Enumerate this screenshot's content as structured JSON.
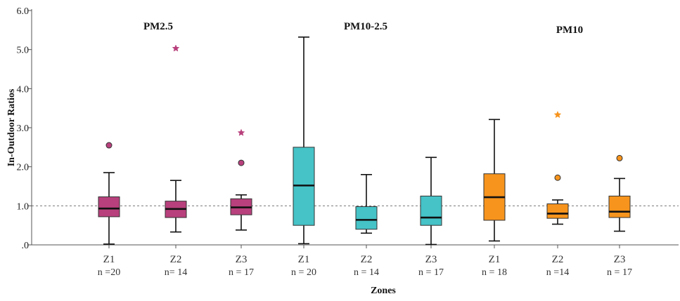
{
  "chart_data": {
    "type": "boxplot",
    "xlabel": "Zones",
    "ylabel": "In-Outdoor Ratios",
    "ylim": [
      0,
      6.0
    ],
    "yticks": [
      0,
      1,
      2,
      3,
      4,
      5,
      6
    ],
    "ytick_labels": [
      ".0",
      "1.0",
      "2.0",
      "3.0",
      "4.0",
      "5.0",
      "6.0"
    ],
    "reference_line": 1.0,
    "groups": [
      {
        "title": "PM2.5",
        "color": "#b8407c",
        "boxes": [
          {
            "category": "Z1",
            "n_label": "n =20",
            "min": 0.02,
            "q1": 0.72,
            "median": 0.93,
            "q3": 1.23,
            "max": 1.85,
            "outliers": [
              2.55
            ],
            "extremes": []
          },
          {
            "category": "Z2",
            "n_label": "n= 14",
            "min": 0.33,
            "q1": 0.7,
            "median": 0.92,
            "q3": 1.12,
            "max": 1.65,
            "outliers": [],
            "extremes": [
              5.03
            ]
          },
          {
            "category": "Z3",
            "n_label": "n = 17",
            "min": 0.38,
            "q1": 0.77,
            "median": 0.96,
            "q3": 1.18,
            "max": 1.28,
            "outliers": [
              2.1
            ],
            "extremes": [
              2.87
            ]
          }
        ]
      },
      {
        "title": "PM10-2.5",
        "color": "#45c3c7",
        "boxes": [
          {
            "category": "Z1",
            "n_label": "n = 20",
            "min": 0.03,
            "q1": 0.5,
            "median": 1.52,
            "q3": 2.5,
            "max": 5.32,
            "outliers": [],
            "extremes": []
          },
          {
            "category": "Z2",
            "n_label": "n = 14",
            "min": 0.3,
            "q1": 0.4,
            "median": 0.64,
            "q3": 0.98,
            "max": 1.8,
            "outliers": [],
            "extremes": []
          },
          {
            "category": "Z3",
            "n_label": "n = 17",
            "min": 0.01,
            "q1": 0.5,
            "median": 0.7,
            "q3": 1.25,
            "max": 2.24,
            "outliers": [],
            "extremes": []
          }
        ]
      },
      {
        "title": "PM10",
        "color": "#f7941d",
        "boxes": [
          {
            "category": "Z1",
            "n_label": "n = 18",
            "min": 0.1,
            "q1": 0.63,
            "median": 1.22,
            "q3": 1.82,
            "max": 3.21,
            "outliers": [],
            "extremes": []
          },
          {
            "category": "Z2",
            "n_label": "n =14",
            "min": 0.53,
            "q1": 0.68,
            "median": 0.8,
            "q3": 1.05,
            "max": 1.15,
            "outliers": [
              1.72
            ],
            "extremes": [
              3.33
            ]
          },
          {
            "category": "Z3",
            "n_label": "n = 17",
            "min": 0.35,
            "q1": 0.7,
            "median": 0.85,
            "q3": 1.25,
            "max": 1.7,
            "outliers": [
              2.22
            ],
            "extremes": []
          }
        ]
      }
    ]
  }
}
